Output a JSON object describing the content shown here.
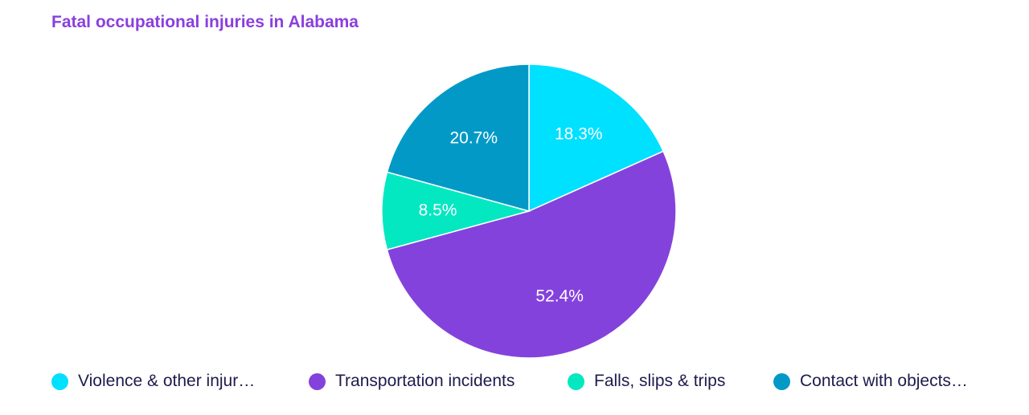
{
  "chart_data": {
    "type": "pie",
    "title": "Fatal occupational injuries in Alabama",
    "slices": [
      {
        "label": "Violence & other injur…",
        "value": 18.3,
        "display": "18.3%",
        "color": "#00e0ff"
      },
      {
        "label": "Transportation incidents",
        "value": 52.4,
        "display": "52.4%",
        "color": "#8442dc"
      },
      {
        "label": "Falls, slips & trips",
        "value": 8.5,
        "display": "8.5%",
        "color": "#04e8c2"
      },
      {
        "label": "Contact with objects…",
        "value": 20.7,
        "display": "20.7%",
        "color": "#0399c7"
      }
    ],
    "legend_position": "bottom",
    "title_color": "#8a3fde",
    "legend_text_color": "#1e1b4b"
  }
}
